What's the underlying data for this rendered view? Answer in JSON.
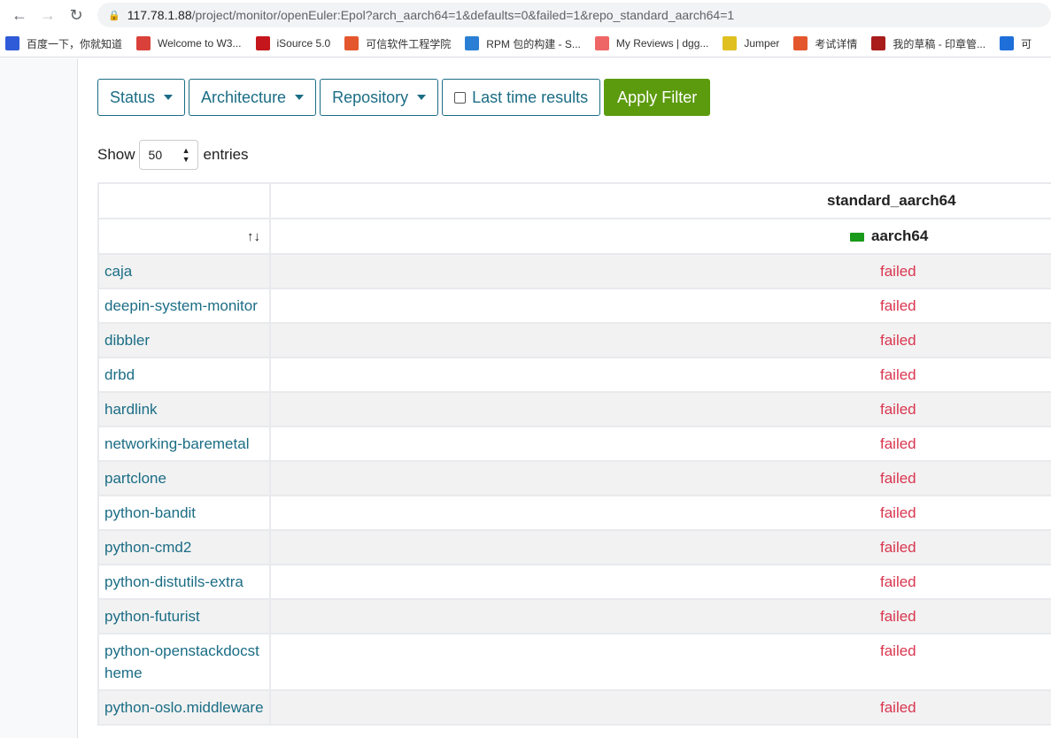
{
  "browser": {
    "url_host": "117.78.1.88",
    "url_path": "/project/monitor/openEuler:Epol?arch_aarch64=1&defaults=0&failed=1&repo_standard_aarch64=1",
    "bookmarks": [
      {
        "label": "百度一下，你就知道",
        "color": "#2f5bd8"
      },
      {
        "label": "Welcome to W3...",
        "color": "#d9413a"
      },
      {
        "label": "iSource 5.0",
        "color": "#c4161c"
      },
      {
        "label": "可信软件工程学院",
        "color": "#e4572e"
      },
      {
        "label": "RPM 包的构建 - S...",
        "color": "#2a7fd4"
      },
      {
        "label": "My Reviews | dgg...",
        "color": "#e66"
      },
      {
        "label": "Jumper",
        "color": "#e0c020"
      },
      {
        "label": "考试详情",
        "color": "#e4572e"
      },
      {
        "label": "我的草稿 - 印章管...",
        "color": "#a81c1c"
      },
      {
        "label": "可",
        "color": "#1e6fd9"
      }
    ]
  },
  "filters": {
    "status": "Status",
    "architecture": "Architecture",
    "repository": "Repository",
    "last_time": "Last time results",
    "apply": "Apply Filter"
  },
  "length": {
    "show": "Show",
    "value": "50",
    "entries": "entries"
  },
  "table": {
    "repo": "standard_aarch64",
    "arch": "aarch64",
    "sort_icon": "↑↓",
    "rows": [
      {
        "name": "caja",
        "status": "failed"
      },
      {
        "name": "deepin-system-monitor",
        "status": "failed"
      },
      {
        "name": "dibbler",
        "status": "failed"
      },
      {
        "name": "drbd",
        "status": "failed"
      },
      {
        "name": "hardlink",
        "status": "failed"
      },
      {
        "name": "networking-baremetal",
        "status": "failed"
      },
      {
        "name": "partclone",
        "status": "failed"
      },
      {
        "name": "python-bandit",
        "status": "failed"
      },
      {
        "name": "python-cmd2",
        "status": "failed"
      },
      {
        "name": "python-distutils-extra",
        "status": "failed"
      },
      {
        "name": "python-futurist",
        "status": "failed"
      },
      {
        "name": "python-openstackdocstheme",
        "status": "failed"
      },
      {
        "name": "python-oslo.middleware",
        "status": "failed"
      }
    ]
  }
}
